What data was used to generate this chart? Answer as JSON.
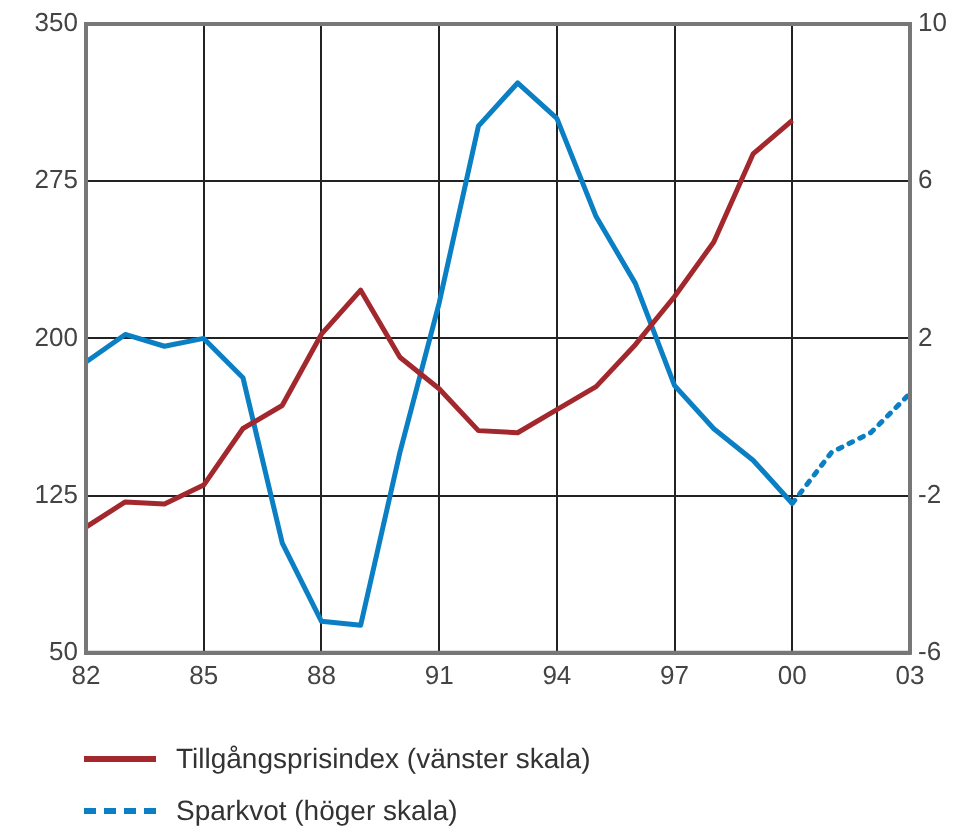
{
  "chart_data": {
    "type": "line",
    "xlim": [
      1982,
      2003
    ],
    "xticks": [
      {
        "value": 1982,
        "label": "82"
      },
      {
        "value": 1985,
        "label": "85"
      },
      {
        "value": 1988,
        "label": "88"
      },
      {
        "value": 1991,
        "label": "91"
      },
      {
        "value": 1994,
        "label": "94"
      },
      {
        "value": 1997,
        "label": "97"
      },
      {
        "value": 2000,
        "label": "00"
      },
      {
        "value": 2003,
        "label": "03"
      }
    ],
    "ylim": [
      50,
      350
    ],
    "yticks": [
      50,
      125,
      200,
      275,
      350
    ],
    "y2lim": [
      -6,
      10
    ],
    "y2ticks": [
      -6,
      -2,
      2,
      6,
      10
    ],
    "grid": true,
    "legend": "bottom",
    "marker": "none",
    "series": [
      {
        "name": "Tillgångsprisindex (vänster skala)",
        "color": "#a3282d",
        "line_style": "solid",
        "x": [
          1982,
          1983,
          1984,
          1985,
          1986,
          1987,
          1988,
          1989,
          1990,
          1991,
          1992,
          1993,
          1994,
          1995,
          1996,
          1997,
          1998,
          1999,
          2000
        ],
        "values": [
          110,
          122,
          121,
          130,
          157,
          168,
          202,
          223,
          191,
          176,
          156,
          155,
          166,
          177,
          197,
          220,
          246,
          288,
          304
        ]
      },
      {
        "name": "Sparkvot (höger skala)",
        "color": "#0a7fc4",
        "axis": "y2",
        "line_style": "solid",
        "x": [
          1982,
          1983,
          1984,
          1985,
          1986,
          1987,
          1988,
          1989,
          1990,
          1991,
          1992,
          1993,
          1994,
          1995,
          1996,
          1997,
          1998,
          1999,
          2000
        ],
        "values": [
          1.4,
          2.1,
          1.8,
          2.0,
          1.0,
          -3.2,
          -5.2,
          -5.3,
          -0.9,
          2.9,
          7.4,
          8.5,
          7.6,
          5.1,
          3.4,
          0.8,
          -0.3,
          -1.1,
          -2.2
        ]
      },
      {
        "color": "#0a7fc4",
        "axis": "y2",
        "line_style": "dotted",
        "x": [
          2000,
          2001,
          2002,
          2003
        ],
        "values": [
          -2.2,
          -0.9,
          -0.4,
          0.6
        ]
      }
    ]
  }
}
